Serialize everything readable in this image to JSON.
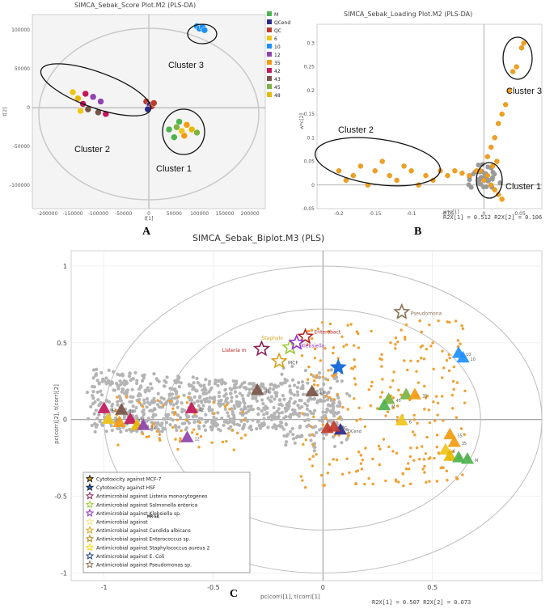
{
  "chart_data": [
    {
      "panel": "A",
      "type": "scatter",
      "title": "SIMCA_Sebak_Score Plot.M2 (PLS-DA)",
      "xlabel": "t[1]",
      "ylabel": "t[2]",
      "xlim": [
        -230000,
        230000
      ],
      "ylim": [
        -130000,
        120000
      ],
      "xticks": [
        "-200000",
        "-150000",
        "-100000",
        "-50000",
        "0",
        "50000",
        "100000",
        "150000",
        "200000"
      ],
      "xtick_values": [
        -200000,
        -150000,
        -100000,
        -50000,
        0,
        50000,
        100000,
        150000,
        200000
      ],
      "yticks": [
        "100000",
        "50000",
        "0",
        "-50000",
        "-100000"
      ],
      "ytick_values": [
        100000,
        50000,
        0,
        -50000,
        -100000
      ],
      "legend": [
        {
          "label": "M",
          "color": "#4db34d"
        },
        {
          "label": "QCend",
          "color": "#2a2a8a"
        },
        {
          "label": "QC",
          "color": "#c0392b"
        },
        {
          "label": "6",
          "color": "#f0c419"
        },
        {
          "label": "10",
          "color": "#1e90ff"
        },
        {
          "label": "12",
          "color": "#8e44ad"
        },
        {
          "label": "35",
          "color": "#f39c12"
        },
        {
          "label": "42",
          "color": "#c2185b"
        },
        {
          "label": "43",
          "color": "#795548"
        },
        {
          "label": "45",
          "color": "#7cb342"
        },
        {
          "label": "48",
          "color": "#e6b800"
        }
      ],
      "points": [
        {
          "x": 95000,
          "y": 105000,
          "group": "10"
        },
        {
          "x": 100000,
          "y": 102000,
          "group": "10"
        },
        {
          "x": 106000,
          "y": 104000,
          "group": "10"
        },
        {
          "x": 110000,
          "y": 100000,
          "group": "10"
        },
        {
          "x": -150000,
          "y": 20000,
          "group": "6"
        },
        {
          "x": -140000,
          "y": 12000,
          "group": "48"
        },
        {
          "x": -125000,
          "y": 18000,
          "group": "42"
        },
        {
          "x": -130000,
          "y": 5000,
          "group": "42"
        },
        {
          "x": -110000,
          "y": 14000,
          "group": "12"
        },
        {
          "x": -95000,
          "y": 8000,
          "group": "12"
        },
        {
          "x": -120000,
          "y": -2000,
          "group": "43"
        },
        {
          "x": -100000,
          "y": -6000,
          "group": "43"
        },
        {
          "x": -85000,
          "y": -8000,
          "group": "42"
        },
        {
          "x": -135000,
          "y": -4000,
          "group": "6"
        },
        {
          "x": -5000,
          "y": 8000,
          "group": "QC"
        },
        {
          "x": 2000,
          "y": 4000,
          "group": "QCend"
        },
        {
          "x": 6000,
          "y": 2000,
          "group": "QC"
        },
        {
          "x": -2000,
          "y": -2000,
          "group": "QCend"
        },
        {
          "x": 10000,
          "y": 6000,
          "group": "QC"
        },
        {
          "x": 40000,
          "y": -28000,
          "group": "M"
        },
        {
          "x": 55000,
          "y": -25000,
          "group": "45"
        },
        {
          "x": 65000,
          "y": -30000,
          "group": "6"
        },
        {
          "x": 75000,
          "y": -22000,
          "group": "35"
        },
        {
          "x": 85000,
          "y": -28000,
          "group": "48"
        },
        {
          "x": 70000,
          "y": -36000,
          "group": "35"
        },
        {
          "x": 50000,
          "y": -38000,
          "group": "M"
        },
        {
          "x": 95000,
          "y": -32000,
          "group": "45"
        },
        {
          "x": 60000,
          "y": -18000,
          "group": "M"
        }
      ],
      "annotations": [
        "Cluster 1",
        "Cluster 2",
        "Cluster 3"
      ]
    },
    {
      "panel": "B",
      "type": "scatter",
      "title": "SIMCA_Sebak_Loading Plot.M2 (PLS-DA)",
      "xlabel": "w*c[1]",
      "ylabel": "w*c[2]",
      "xlim": [
        -0.23,
        0.08
      ],
      "ylim": [
        -0.05,
        0.34
      ],
      "xticks": [
        "-0.2",
        "-0.15",
        "-0.1",
        "-0.05",
        "0",
        "0.05"
      ],
      "xtick_values": [
        -0.2,
        -0.15,
        -0.1,
        -0.05,
        0,
        0.05
      ],
      "yticks": [
        "0.3",
        "0.25",
        "0.2",
        "0.15",
        "0.1",
        "0.05",
        "0",
        "-0.05"
      ],
      "ytick_values": [
        0.3,
        0.25,
        0.2,
        0.15,
        0.1,
        0.05,
        0,
        -0.05
      ],
      "r2_text": "R2X[1] = 0.512 R2X[2] = 0.106",
      "annotations": [
        "Cluster 3",
        "Cluster 2",
        "Cluster 1"
      ],
      "points": [
        {
          "x": 0.052,
          "y": 0.29
        },
        {
          "x": 0.045,
          "y": 0.25
        },
        {
          "x": 0.055,
          "y": 0.3
        },
        {
          "x": 0.04,
          "y": 0.24
        },
        {
          "x": -0.2,
          "y": 0.03
        },
        {
          "x": -0.19,
          "y": 0.01
        },
        {
          "x": -0.18,
          "y": 0.02
        },
        {
          "x": -0.17,
          "y": 0.04
        },
        {
          "x": -0.16,
          "y": 0.0
        },
        {
          "x": -0.15,
          "y": 0.03
        },
        {
          "x": -0.14,
          "y": 0.05
        },
        {
          "x": -0.13,
          "y": 0.02
        },
        {
          "x": -0.12,
          "y": 0.01
        },
        {
          "x": -0.11,
          "y": 0.04
        },
        {
          "x": -0.1,
          "y": 0.03
        },
        {
          "x": -0.09,
          "y": 0.0
        },
        {
          "x": -0.08,
          "y": 0.02
        },
        {
          "x": -0.07,
          "y": 0.01
        },
        {
          "x": -0.06,
          "y": 0.03
        },
        {
          "x": -0.05,
          "y": 0.02
        },
        {
          "x": -0.04,
          "y": 0.03
        },
        {
          "x": -0.03,
          "y": 0.025
        },
        {
          "x": -0.02,
          "y": 0.02
        },
        {
          "x": -0.01,
          "y": 0.03
        },
        {
          "x": 0.005,
          "y": 0.06
        },
        {
          "x": 0.01,
          "y": 0.08
        },
        {
          "x": 0.015,
          "y": 0.1
        },
        {
          "x": 0.02,
          "y": 0.13
        },
        {
          "x": 0.025,
          "y": 0.15
        },
        {
          "x": 0.03,
          "y": 0.17
        },
        {
          "x": 0.035,
          "y": 0.2
        },
        {
          "x": 0.01,
          "y": 0.0
        },
        {
          "x": 0.015,
          "y": -0.01
        },
        {
          "x": 0.02,
          "y": -0.02
        },
        {
          "x": 0.005,
          "y": 0.02
        },
        {
          "x": 0.0,
          "y": 0.01
        },
        {
          "x": -0.005,
          "y": 0.03
        },
        {
          "x": 0.012,
          "y": 0.04
        },
        {
          "x": 0.018,
          "y": 0.05
        },
        {
          "x": 0.025,
          "y": -0.03
        }
      ]
    },
    {
      "panel": "C",
      "type": "scatter",
      "title": "SIMCA_Sebak_Biplot.M3 (PLS)",
      "xlabel": "pc(corr)[1], t(corr)[1]",
      "ylabel": "pc(corr)[2], t(corr)[2]",
      "xlim": [
        -1.15,
        1.0
      ],
      "ylim": [
        -1.05,
        1.1
      ],
      "xticks": [
        "-1",
        "-0.5",
        "0",
        "0.5"
      ],
      "xtick_values": [
        -1,
        -0.5,
        0,
        0.5
      ],
      "yticks": [
        "1",
        "0.5",
        "0",
        "-0.5",
        "-1"
      ],
      "ytick_values": [
        1,
        0.5,
        0,
        -0.5,
        -1
      ],
      "r2_text": "R2X[1] = 0.507 R2X[2] = 0.073",
      "legend": [
        "Cytotoxicity against MCF-7",
        "Cytotoxicity against HSF",
        "Antimicrobial against Listeria monocytogenes",
        "Antimicrobial against Salmonella enterica",
        "Antimicrobial against Klebsiella sp.",
        "Antimicrobial against",
        "Antimicrobial against Candida albicans",
        "Antimicrobial against Enterococcus sp.",
        "Antimicrobial against Staphylococcus aureus 2",
        "Antimicrobial against E. Coli",
        "Antimicrobial against Pseudomonas sp."
      ],
      "legend_colors": [
        "#d4a017",
        "#1e6fd9",
        "#8b2252",
        "#9acd32",
        "#9932cc",
        "#f0e68c",
        "#daa520",
        "#b8860b",
        "#ffd700",
        "#1e3a8a",
        "#8b7355"
      ],
      "legend_note": "MR-SA",
      "star_labels": [
        "Pseudomona",
        "Enterobact",
        "Klebsiella",
        "Staphylo",
        "Listeria m",
        "MCF"
      ],
      "stars": [
        {
          "x": 0.36,
          "y": 0.7,
          "color": "#8b7355"
        },
        {
          "x": -0.08,
          "y": 0.54,
          "color": "#b22222"
        },
        {
          "x": -0.28,
          "y": 0.46,
          "color": "#8b2252"
        },
        {
          "x": -0.2,
          "y": 0.38,
          "color": "#d4a017"
        },
        {
          "x": -0.15,
          "y": 0.47,
          "color": "#9acd32"
        },
        {
          "x": -0.12,
          "y": 0.5,
          "color": "#9932cc"
        },
        {
          "x": 0.07,
          "y": 0.34,
          "color": "#1e6fd9"
        }
      ],
      "triangles": [
        {
          "x": -1.0,
          "y": 0.07,
          "color": "#c2185b",
          "label": "42"
        },
        {
          "x": -0.92,
          "y": 0.06,
          "color": "#795548",
          "label": "43"
        },
        {
          "x": -0.88,
          "y": 0.0,
          "color": "#c2185b",
          "label": "42"
        },
        {
          "x": -0.98,
          "y": 0.0,
          "color": "#f0c419",
          "label": "48"
        },
        {
          "x": -0.93,
          "y": -0.02,
          "color": "#f39c12",
          "label": "6"
        },
        {
          "x": -0.85,
          "y": -0.04,
          "color": "#e6b800",
          "label": "48"
        },
        {
          "x": -0.82,
          "y": -0.04,
          "color": "#8e44ad",
          "label": "12"
        },
        {
          "x": -0.6,
          "y": 0.07,
          "color": "#c2185b",
          "label": "42"
        },
        {
          "x": -0.62,
          "y": -0.12,
          "color": "#8e44ad",
          "label": "12"
        },
        {
          "x": -0.3,
          "y": 0.19,
          "color": "#795548",
          "label": "43"
        },
        {
          "x": -0.05,
          "y": 0.18,
          "color": "#795548",
          "label": "43"
        },
        {
          "x": 0.02,
          "y": -0.06,
          "color": "#c0392b",
          "label": "QC"
        },
        {
          "x": 0.08,
          "y": -0.07,
          "color": "#2a2a8a",
          "label": "QCend"
        },
        {
          "x": 0.05,
          "y": -0.05,
          "color": "#c0392b",
          "label": "QC"
        },
        {
          "x": 0.3,
          "y": 0.13,
          "color": "#7cb342",
          "label": "45"
        },
        {
          "x": 0.28,
          "y": 0.09,
          "color": "#4db34d",
          "label": "M"
        },
        {
          "x": 0.38,
          "y": 0.16,
          "color": "#7cb342",
          "label": "45"
        },
        {
          "x": 0.42,
          "y": 0.16,
          "color": "#f39c12",
          "label": "35"
        },
        {
          "x": 0.36,
          "y": -0.01,
          "color": "#f0c419",
          "label": "6"
        },
        {
          "x": 0.62,
          "y": 0.43,
          "color": "#1e90ff",
          "label": "10"
        },
        {
          "x": 0.64,
          "y": 0.4,
          "color": "#1e90ff",
          "label": "10"
        },
        {
          "x": 0.58,
          "y": -0.1,
          "color": "#f39c12",
          "label": "35"
        },
        {
          "x": 0.6,
          "y": -0.15,
          "color": "#f39c12",
          "label": "35"
        },
        {
          "x": 0.56,
          "y": -0.2,
          "color": "#f0c419",
          "label": "6"
        },
        {
          "x": 0.58,
          "y": -0.24,
          "color": "#e6b800",
          "label": "48"
        },
        {
          "x": 0.62,
          "y": -0.25,
          "color": "#4db34d",
          "label": "M"
        },
        {
          "x": 0.66,
          "y": -0.26,
          "color": "#4db34d",
          "label": "M"
        }
      ]
    }
  ],
  "panel_labels": {
    "a": "A",
    "b": "B",
    "c": "C"
  }
}
